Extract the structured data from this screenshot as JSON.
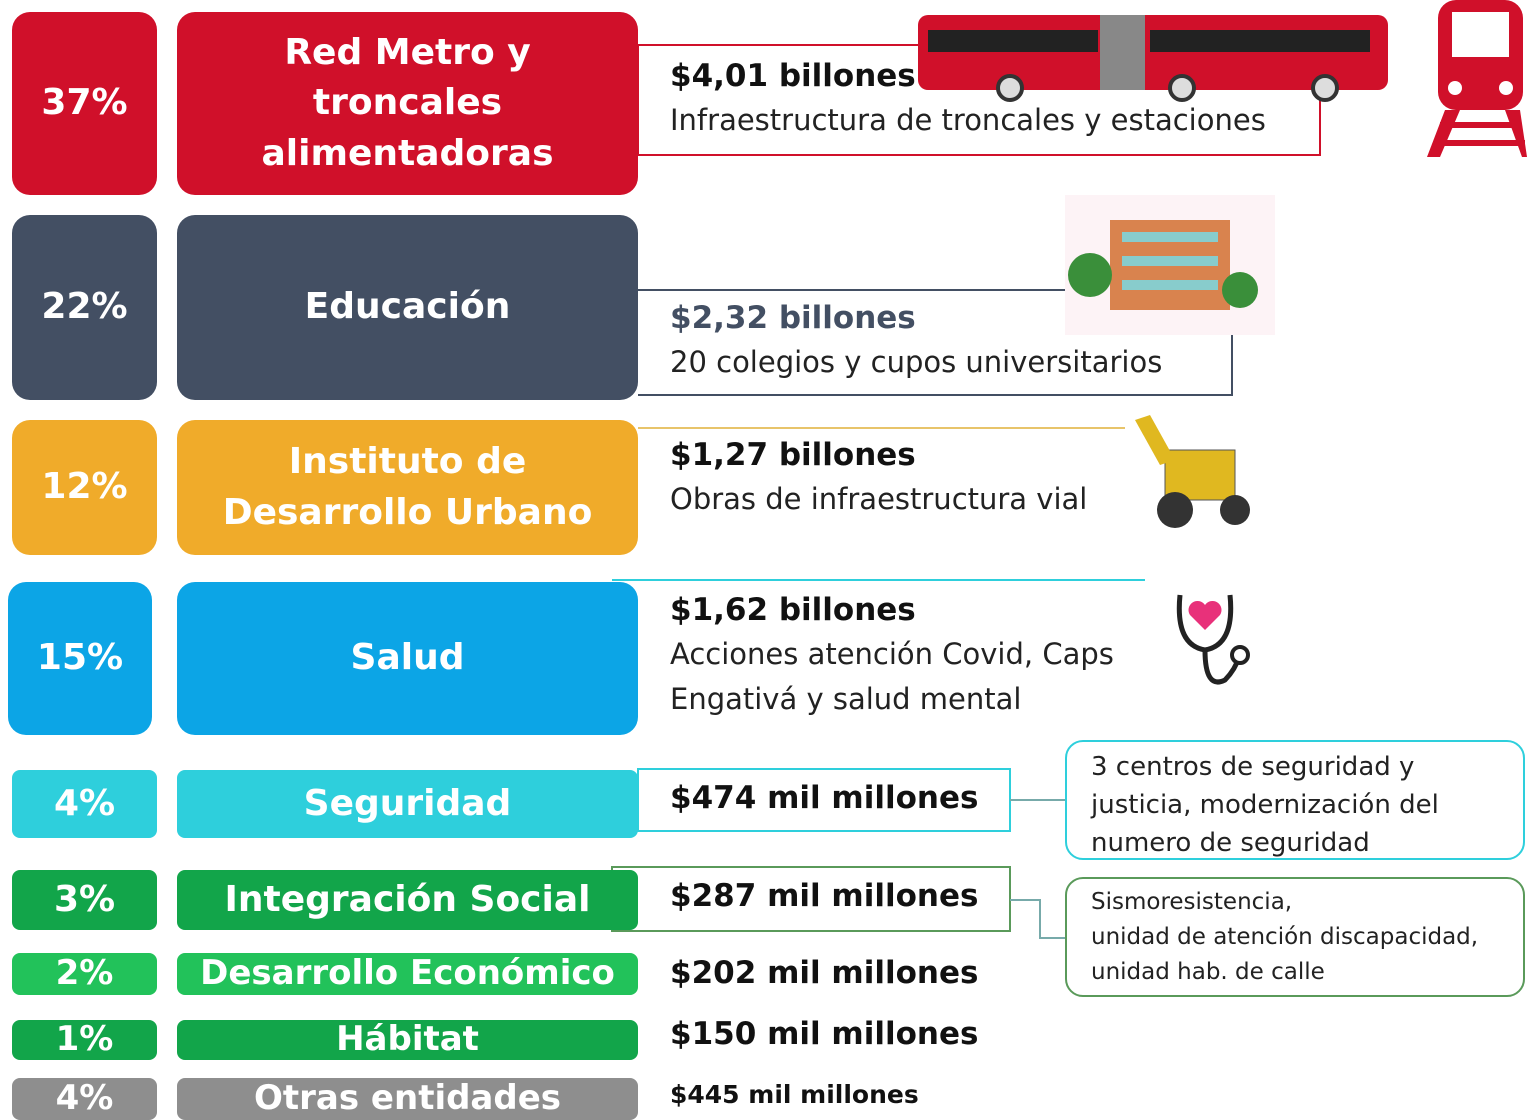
{
  "rows": [
    {
      "percent": "37%",
      "name": "Red Metro y troncales alimentadoras",
      "amount": "$4,01 billones",
      "detail": "Infraestructura  de troncales y estaciones",
      "color": "#d0102a"
    },
    {
      "percent": "22%",
      "name": "Educación",
      "amount": "$2,32 billones",
      "detail": "20 colegios y cupos universitarios",
      "color": "#434f63"
    },
    {
      "percent": "12%",
      "name": "Instituto de Desarrollo Urbano",
      "amount": "$1,27 billones",
      "detail": "Obras de infraestructura vial",
      "color": "#f0ab2a"
    },
    {
      "percent": "15%",
      "name": "Salud",
      "amount": "$1,62 billones",
      "detail": "Acciones atención Covid, Caps Engativá y salud mental",
      "color": "#0ca5e6"
    },
    {
      "percent": "4%",
      "name": "Seguridad",
      "amount": "$474 mil millones",
      "color": "#2ecfdc"
    },
    {
      "percent": "3%",
      "name": "Integración Social",
      "amount": "$287 mil millones",
      "color": "#12a54a"
    },
    {
      "percent": "2%",
      "name": "Desarrollo Económico",
      "amount": "$202 mil millones",
      "color": "#22c25a"
    },
    {
      "percent": "1%",
      "name": "Hábitat",
      "amount": "$150 mil millones",
      "color": "#12a54a"
    },
    {
      "percent": "4%",
      "name": "Otras entidades",
      "amount": "$445 mil millones",
      "color": "#8e8e8e"
    }
  ],
  "notes": [
    {
      "lines": [
        "3 centros de seguridad y",
        "justicia, modernización del",
        "numero de seguridad"
      ],
      "color": "#2ecfdc"
    },
    {
      "lines": [
        "Sismoresistencia,",
        "unidad de atención discapacidad,",
        "unidad hab. de calle"
      ],
      "color": "#5a9a5a"
    }
  ]
}
